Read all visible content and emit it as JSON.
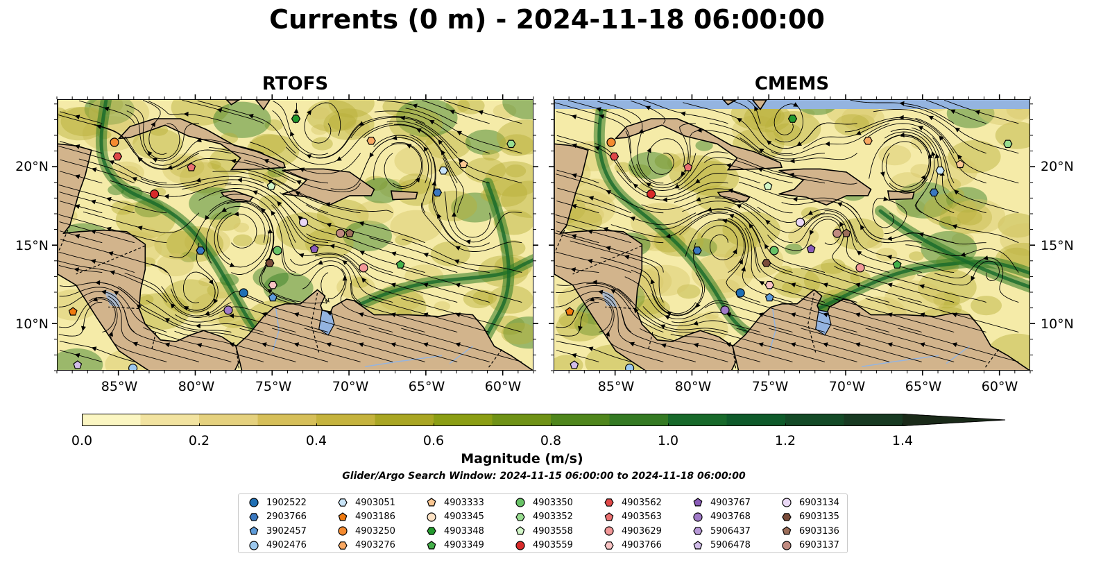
{
  "title": "Currents (0 m) - 2024-11-18 06:00:00",
  "panels": [
    {
      "title": "RTOFS"
    },
    {
      "title": "CMEMS"
    }
  ],
  "axes": {
    "lat_labels": [
      "20°N",
      "15°N",
      "10°N"
    ],
    "lon_labels": [
      "85°W",
      "80°W",
      "75°W",
      "70°W",
      "65°W",
      "60°W"
    ]
  },
  "colorbar": {
    "label": "Magnitude (m/s)",
    "tick_labels": [
      "0.0",
      "0.2",
      "0.4",
      "0.6",
      "0.8",
      "1.0",
      "1.2",
      "1.4"
    ],
    "colors": [
      "#fbf6c2",
      "#f2e3a0",
      "#e5d17e",
      "#d6bf59",
      "#c5b33d",
      "#a9a623",
      "#8b9e14",
      "#6f9216",
      "#4f861c",
      "#347a23",
      "#17692a",
      "#0e5a2a",
      "#144a27",
      "#183a22",
      "#1a2a19"
    ],
    "extend": "max"
  },
  "search_window": "Glider/Argo Search Window: 2024-11-15 06:00:00 to 2024-11-18 06:00:00",
  "legend": [
    {
      "id": "1902522",
      "marker": "circle",
      "color": "#1f6fb4"
    },
    {
      "id": "2903766",
      "marker": "hexagon",
      "color": "#3a78c0"
    },
    {
      "id": "3902457",
      "marker": "pentagon",
      "color": "#5d9bd9"
    },
    {
      "id": "4902476",
      "marker": "circle",
      "color": "#9cc8ee"
    },
    {
      "id": "4903051",
      "marker": "hexagon",
      "color": "#c8e4f8"
    },
    {
      "id": "4903186",
      "marker": "pentagon",
      "color": "#f07a10"
    },
    {
      "id": "4903250",
      "marker": "circle",
      "color": "#f58b30"
    },
    {
      "id": "4903276",
      "marker": "hexagon",
      "color": "#f9a862"
    },
    {
      "id": "4903333",
      "marker": "pentagon",
      "color": "#fbc792"
    },
    {
      "id": "4903345",
      "marker": "circle",
      "color": "#fde2c4"
    },
    {
      "id": "4903348",
      "marker": "hexagon",
      "color": "#249a2e"
    },
    {
      "id": "4903349",
      "marker": "pentagon",
      "color": "#44b04a"
    },
    {
      "id": "4903350",
      "marker": "circle",
      "color": "#68c266"
    },
    {
      "id": "4903352",
      "marker": "hexagon",
      "color": "#98dd90"
    },
    {
      "id": "4903558",
      "marker": "pentagon",
      "color": "#d2f7c8"
    },
    {
      "id": "4903559",
      "marker": "circle",
      "color": "#d82a2a"
    },
    {
      "id": "4903562",
      "marker": "hexagon",
      "color": "#e04848"
    },
    {
      "id": "4903563",
      "marker": "pentagon",
      "color": "#ea7070"
    },
    {
      "id": "4903629",
      "marker": "circle",
      "color": "#f29898"
    },
    {
      "id": "4903766",
      "marker": "hexagon",
      "color": "#f9c4c4"
    },
    {
      "id": "4903767",
      "marker": "pentagon",
      "color": "#8a5cb8"
    },
    {
      "id": "4903768",
      "marker": "circle",
      "color": "#a07ac8"
    },
    {
      "id": "5906437",
      "marker": "hexagon",
      "color": "#b89ad8"
    },
    {
      "id": "5906478",
      "marker": "pentagon",
      "color": "#d2bdea"
    },
    {
      "id": "6903134",
      "marker": "circle",
      "color": "#ead8f6"
    },
    {
      "id": "6903135",
      "marker": "hexagon",
      "color": "#7a4c3a"
    },
    {
      "id": "6903136",
      "marker": "pentagon",
      "color": "#9c6e5a"
    },
    {
      "id": "6903137",
      "marker": "circle",
      "color": "#c08a80"
    }
  ],
  "map_colors": {
    "land": "#d2b48c",
    "water_features": "#94b4e0",
    "low_speed": "#f5eba8",
    "mid_speed": "#b7b03a",
    "high_speed": "#2f7a22",
    "streamline": "#000000"
  },
  "markers": [
    {
      "id": "4903250",
      "lon": -85.3,
      "lat": 21.6
    },
    {
      "id": "4903562",
      "lon": -85.1,
      "lat": 20.7
    },
    {
      "id": "4903563",
      "lon": -80.3,
      "lat": 20.0
    },
    {
      "id": "4903559",
      "lon": -82.7,
      "lat": 18.3
    },
    {
      "id": "2903766",
      "lon": -79.7,
      "lat": 14.7
    },
    {
      "id": "1902522",
      "lon": -76.9,
      "lat": 12.0
    },
    {
      "id": "4903768",
      "lon": -77.9,
      "lat": 10.9
    },
    {
      "id": "3902457",
      "lon": -75.0,
      "lat": 11.7
    },
    {
      "id": "4903766",
      "lon": -75.0,
      "lat": 12.5
    },
    {
      "id": "6903135",
      "lon": -75.2,
      "lat": 13.9
    },
    {
      "id": "4903350",
      "lon": -74.7,
      "lat": 14.7
    },
    {
      "id": "4903767",
      "lon": -72.3,
      "lat": 14.8
    },
    {
      "id": "6903134",
      "lon": -73.0,
      "lat": 16.5
    },
    {
      "id": "6903137",
      "lon": -70.6,
      "lat": 15.8
    },
    {
      "id": "6903136",
      "lon": -70.0,
      "lat": 15.8
    },
    {
      "id": "4903629",
      "lon": -69.1,
      "lat": 13.6
    },
    {
      "id": "4903349",
      "lon": -66.7,
      "lat": 13.8
    },
    {
      "id": "4903558",
      "lon": -75.1,
      "lat": 18.8
    },
    {
      "id": "4903348",
      "lon": -73.5,
      "lat": 23.1
    },
    {
      "id": "4903276",
      "lon": -68.6,
      "lat": 21.7
    },
    {
      "id": "4903333",
      "lon": -62.6,
      "lat": 20.2
    },
    {
      "id": "4903051",
      "lon": -63.9,
      "lat": 19.8
    },
    {
      "id": "2903766",
      "lon": -64.3,
      "lat": 18.4
    },
    {
      "id": "4903352",
      "lon": -59.5,
      "lat": 21.5
    },
    {
      "id": "4903186",
      "lon": -88.0,
      "lat": 10.8
    },
    {
      "id": "5906478",
      "lon": -87.7,
      "lat": 7.4
    },
    {
      "id": "4902476",
      "lon": -84.1,
      "lat": 7.2
    }
  ]
}
